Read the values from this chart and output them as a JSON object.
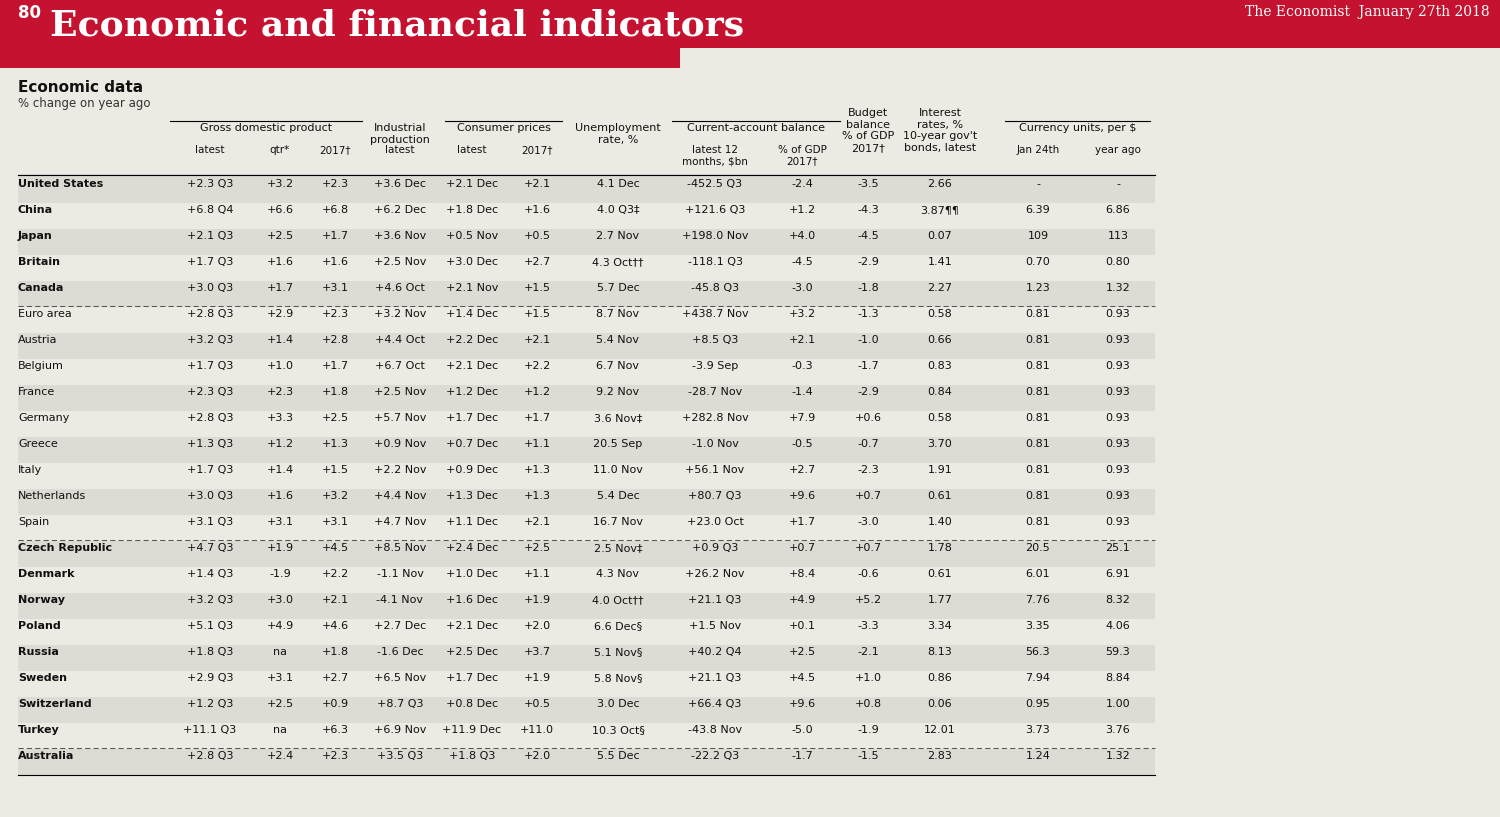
{
  "title": "Economic and financial indicators",
  "page_num": "80",
  "subtitle": "Economic data",
  "subtitle2": "% change on year ago",
  "date_str": "January 27th 2018",
  "bg_color": "#ede9e3",
  "header_bg": "#c41230",
  "countries": [
    "United States",
    "China",
    "Japan",
    "Britain",
    "Canada",
    "Euro area",
    "Austria",
    "Belgium",
    "France",
    "Germany",
    "Greece",
    "Italy",
    "Netherlands",
    "Spain",
    "Czech Republic",
    "Denmark",
    "Norway",
    "Poland",
    "Russia",
    "Sweden",
    "Switzerland",
    "Turkey",
    "Australia"
  ],
  "bold_countries": [
    "United States",
    "China",
    "Japan",
    "Britain",
    "Canada",
    "Czech Republic",
    "Denmark",
    "Norway",
    "Poland",
    "Russia",
    "Sweden",
    "Switzerland",
    "Turkey",
    "Australia"
  ],
  "dashed_after": [
    "Canada",
    "Spain",
    "Turkey"
  ],
  "shaded_rows": [
    "United States",
    "Japan",
    "Canada",
    "Austria",
    "France",
    "Greece",
    "Netherlands",
    "Czech Republic",
    "Norway",
    "Russia",
    "Switzerland",
    "Australia"
  ],
  "rows": {
    "United States": [
      "+2.3 Q3",
      "+3.2",
      "+2.3",
      "+3.6 Dec",
      "+2.1 Dec",
      "+2.1",
      "4.1 Dec",
      "-452.5 Q3",
      "-2.4",
      "-3.5",
      "2.66",
      "-",
      "-"
    ],
    "China": [
      "+6.8 Q4",
      "+6.6",
      "+6.8",
      "+6.2 Dec",
      "+1.8 Dec",
      "+1.6",
      "4.0 Q3‡",
      "+121.6 Q3",
      "+1.2",
      "-4.3",
      "3.87¶¶",
      "6.39",
      "6.86"
    ],
    "Japan": [
      "+2.1 Q3",
      "+2.5",
      "+1.7",
      "+3.6 Nov",
      "+0.5 Nov",
      "+0.5",
      "2.7 Nov",
      "+198.0 Nov",
      "+4.0",
      "-4.5",
      "0.07",
      "109",
      "113"
    ],
    "Britain": [
      "+1.7 Q3",
      "+1.6",
      "+1.6",
      "+2.5 Nov",
      "+3.0 Dec",
      "+2.7",
      "4.3 Oct††",
      "-118.1 Q3",
      "-4.5",
      "-2.9",
      "1.41",
      "0.70",
      "0.80"
    ],
    "Canada": [
      "+3.0 Q3",
      "+1.7",
      "+3.1",
      "+4.6 Oct",
      "+2.1 Nov",
      "+1.5",
      "5.7 Dec",
      "-45.8 Q3",
      "-3.0",
      "-1.8",
      "2.27",
      "1.23",
      "1.32"
    ],
    "Euro area": [
      "+2.8 Q3",
      "+2.9",
      "+2.3",
      "+3.2 Nov",
      "+1.4 Dec",
      "+1.5",
      "8.7 Nov",
      "+438.7 Nov",
      "+3.2",
      "-1.3",
      "0.58",
      "0.81",
      "0.93"
    ],
    "Austria": [
      "+3.2 Q3",
      "+1.4",
      "+2.8",
      "+4.4 Oct",
      "+2.2 Dec",
      "+2.1",
      "5.4 Nov",
      "+8.5 Q3",
      "+2.1",
      "-1.0",
      "0.66",
      "0.81",
      "0.93"
    ],
    "Belgium": [
      "+1.7 Q3",
      "+1.0",
      "+1.7",
      "+6.7 Oct",
      "+2.1 Dec",
      "+2.2",
      "6.7 Nov",
      "-3.9 Sep",
      "-0.3",
      "-1.7",
      "0.83",
      "0.81",
      "0.93"
    ],
    "France": [
      "+2.3 Q3",
      "+2.3",
      "+1.8",
      "+2.5 Nov",
      "+1.2 Dec",
      "+1.2",
      "9.2 Nov",
      "-28.7 Nov",
      "-1.4",
      "-2.9",
      "0.84",
      "0.81",
      "0.93"
    ],
    "Germany": [
      "+2.8 Q3",
      "+3.3",
      "+2.5",
      "+5.7 Nov",
      "+1.7 Dec",
      "+1.7",
      "3.6 Nov‡",
      "+282.8 Nov",
      "+7.9",
      "+0.6",
      "0.58",
      "0.81",
      "0.93"
    ],
    "Greece": [
      "+1.3 Q3",
      "+1.2",
      "+1.3",
      "+0.9 Nov",
      "+0.7 Dec",
      "+1.1",
      "20.5 Sep",
      "-1.0 Nov",
      "-0.5",
      "-0.7",
      "3.70",
      "0.81",
      "0.93"
    ],
    "Italy": [
      "+1.7 Q3",
      "+1.4",
      "+1.5",
      "+2.2 Nov",
      "+0.9 Dec",
      "+1.3",
      "11.0 Nov",
      "+56.1 Nov",
      "+2.7",
      "-2.3",
      "1.91",
      "0.81",
      "0.93"
    ],
    "Netherlands": [
      "+3.0 Q3",
      "+1.6",
      "+3.2",
      "+4.4 Nov",
      "+1.3 Dec",
      "+1.3",
      "5.4 Dec",
      "+80.7 Q3",
      "+9.6",
      "+0.7",
      "0.61",
      "0.81",
      "0.93"
    ],
    "Spain": [
      "+3.1 Q3",
      "+3.1",
      "+3.1",
      "+4.7 Nov",
      "+1.1 Dec",
      "+2.1",
      "16.7 Nov",
      "+23.0 Oct",
      "+1.7",
      "-3.0",
      "1.40",
      "0.81",
      "0.93"
    ],
    "Czech Republic": [
      "+4.7 Q3",
      "+1.9",
      "+4.5",
      "+8.5 Nov",
      "+2.4 Dec",
      "+2.5",
      "2.5 Nov‡",
      "+0.9 Q3",
      "+0.7",
      "+0.7",
      "1.78",
      "20.5",
      "25.1"
    ],
    "Denmark": [
      "+1.4 Q3",
      "-1.9",
      "+2.2",
      "-1.1 Nov",
      "+1.0 Dec",
      "+1.1",
      "4.3 Nov",
      "+26.2 Nov",
      "+8.4",
      "-0.6",
      "0.61",
      "6.01",
      "6.91"
    ],
    "Norway": [
      "+3.2 Q3",
      "+3.0",
      "+2.1",
      "-4.1 Nov",
      "+1.6 Dec",
      "+1.9",
      "4.0 Oct††",
      "+21.1 Q3",
      "+4.9",
      "+5.2",
      "1.77",
      "7.76",
      "8.32"
    ],
    "Poland": [
      "+5.1 Q3",
      "+4.9",
      "+4.6",
      "+2.7 Dec",
      "+2.1 Dec",
      "+2.0",
      "6.6 Dec§",
      "+1.5 Nov",
      "+0.1",
      "-3.3",
      "3.34",
      "3.35",
      "4.06"
    ],
    "Russia": [
      "+1.8 Q3",
      "na",
      "+1.8",
      "-1.6 Dec",
      "+2.5 Dec",
      "+3.7",
      "5.1 Nov§",
      "+40.2 Q4",
      "+2.5",
      "-2.1",
      "8.13",
      "56.3",
      "59.3"
    ],
    "Sweden": [
      "+2.9 Q3",
      "+3.1",
      "+2.7",
      "+6.5 Nov",
      "+1.7 Dec",
      "+1.9",
      "5.8 Nov§",
      "+21.1 Q3",
      "+4.5",
      "+1.0",
      "0.86",
      "7.94",
      "8.84"
    ],
    "Switzerland": [
      "+1.2 Q3",
      "+2.5",
      "+0.9",
      "+8.7 Q3",
      "+0.8 Dec",
      "+0.5",
      "3.0 Dec",
      "+66.4 Q3",
      "+9.6",
      "+0.8",
      "0.06",
      "0.95",
      "1.00"
    ],
    "Turkey": [
      "+11.1 Q3",
      "na",
      "+6.3",
      "+6.9 Nov",
      "+11.9 Dec",
      "+11.0",
      "10.3 Oct§",
      "-43.8 Nov",
      "-5.0",
      "-1.9",
      "12.01",
      "3.73",
      "3.76"
    ],
    "Australia": [
      "+2.8 Q3",
      "+2.4",
      "+2.3",
      "+3.5 Q3",
      "+1.8 Q3",
      "+2.0",
      "5.5 Dec",
      "-22.2 Q3",
      "-1.7",
      "-1.5",
      "2.83",
      "1.24",
      "1.32"
    ]
  }
}
